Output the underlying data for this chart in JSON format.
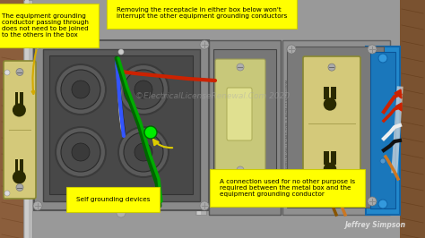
{
  "background_color": "#1a1a1a",
  "watermark": "©ElectricalLicenseRenewal.Com 2020",
  "watermark_color": "#aaaaaa",
  "watermark_alpha": 0.45,
  "signature": "Jeffrey Simpson",
  "wall_color_left": "#8B5E3C",
  "wall_color_right": "#7a5230",
  "gray_bg": "#a0a0a0",
  "metal_box_outer": "#888888",
  "metal_box_inner": "#666666",
  "metal_box_deep": "#505050",
  "outlet_body": "#d4c97a",
  "outlet_slot": "#3a3a00",
  "switch_plate": "#c8c87a",
  "switch_bg": "#808080",
  "blue_box": "#2288cc",
  "blue_box_inner": "#1a77bb",
  "conduit_label": "8 GYPSUM WALLBOARD TYPE X ASTM C1396/L1300M",
  "ann_bg": "#ffff00",
  "ann_edge": "#cccc00",
  "ann_text_color": "#000000",
  "ann_fontsize": 5.2,
  "ann_arrow_color": "#d4aa00",
  "figsize": [
    4.74,
    2.66
  ],
  "dpi": 100
}
